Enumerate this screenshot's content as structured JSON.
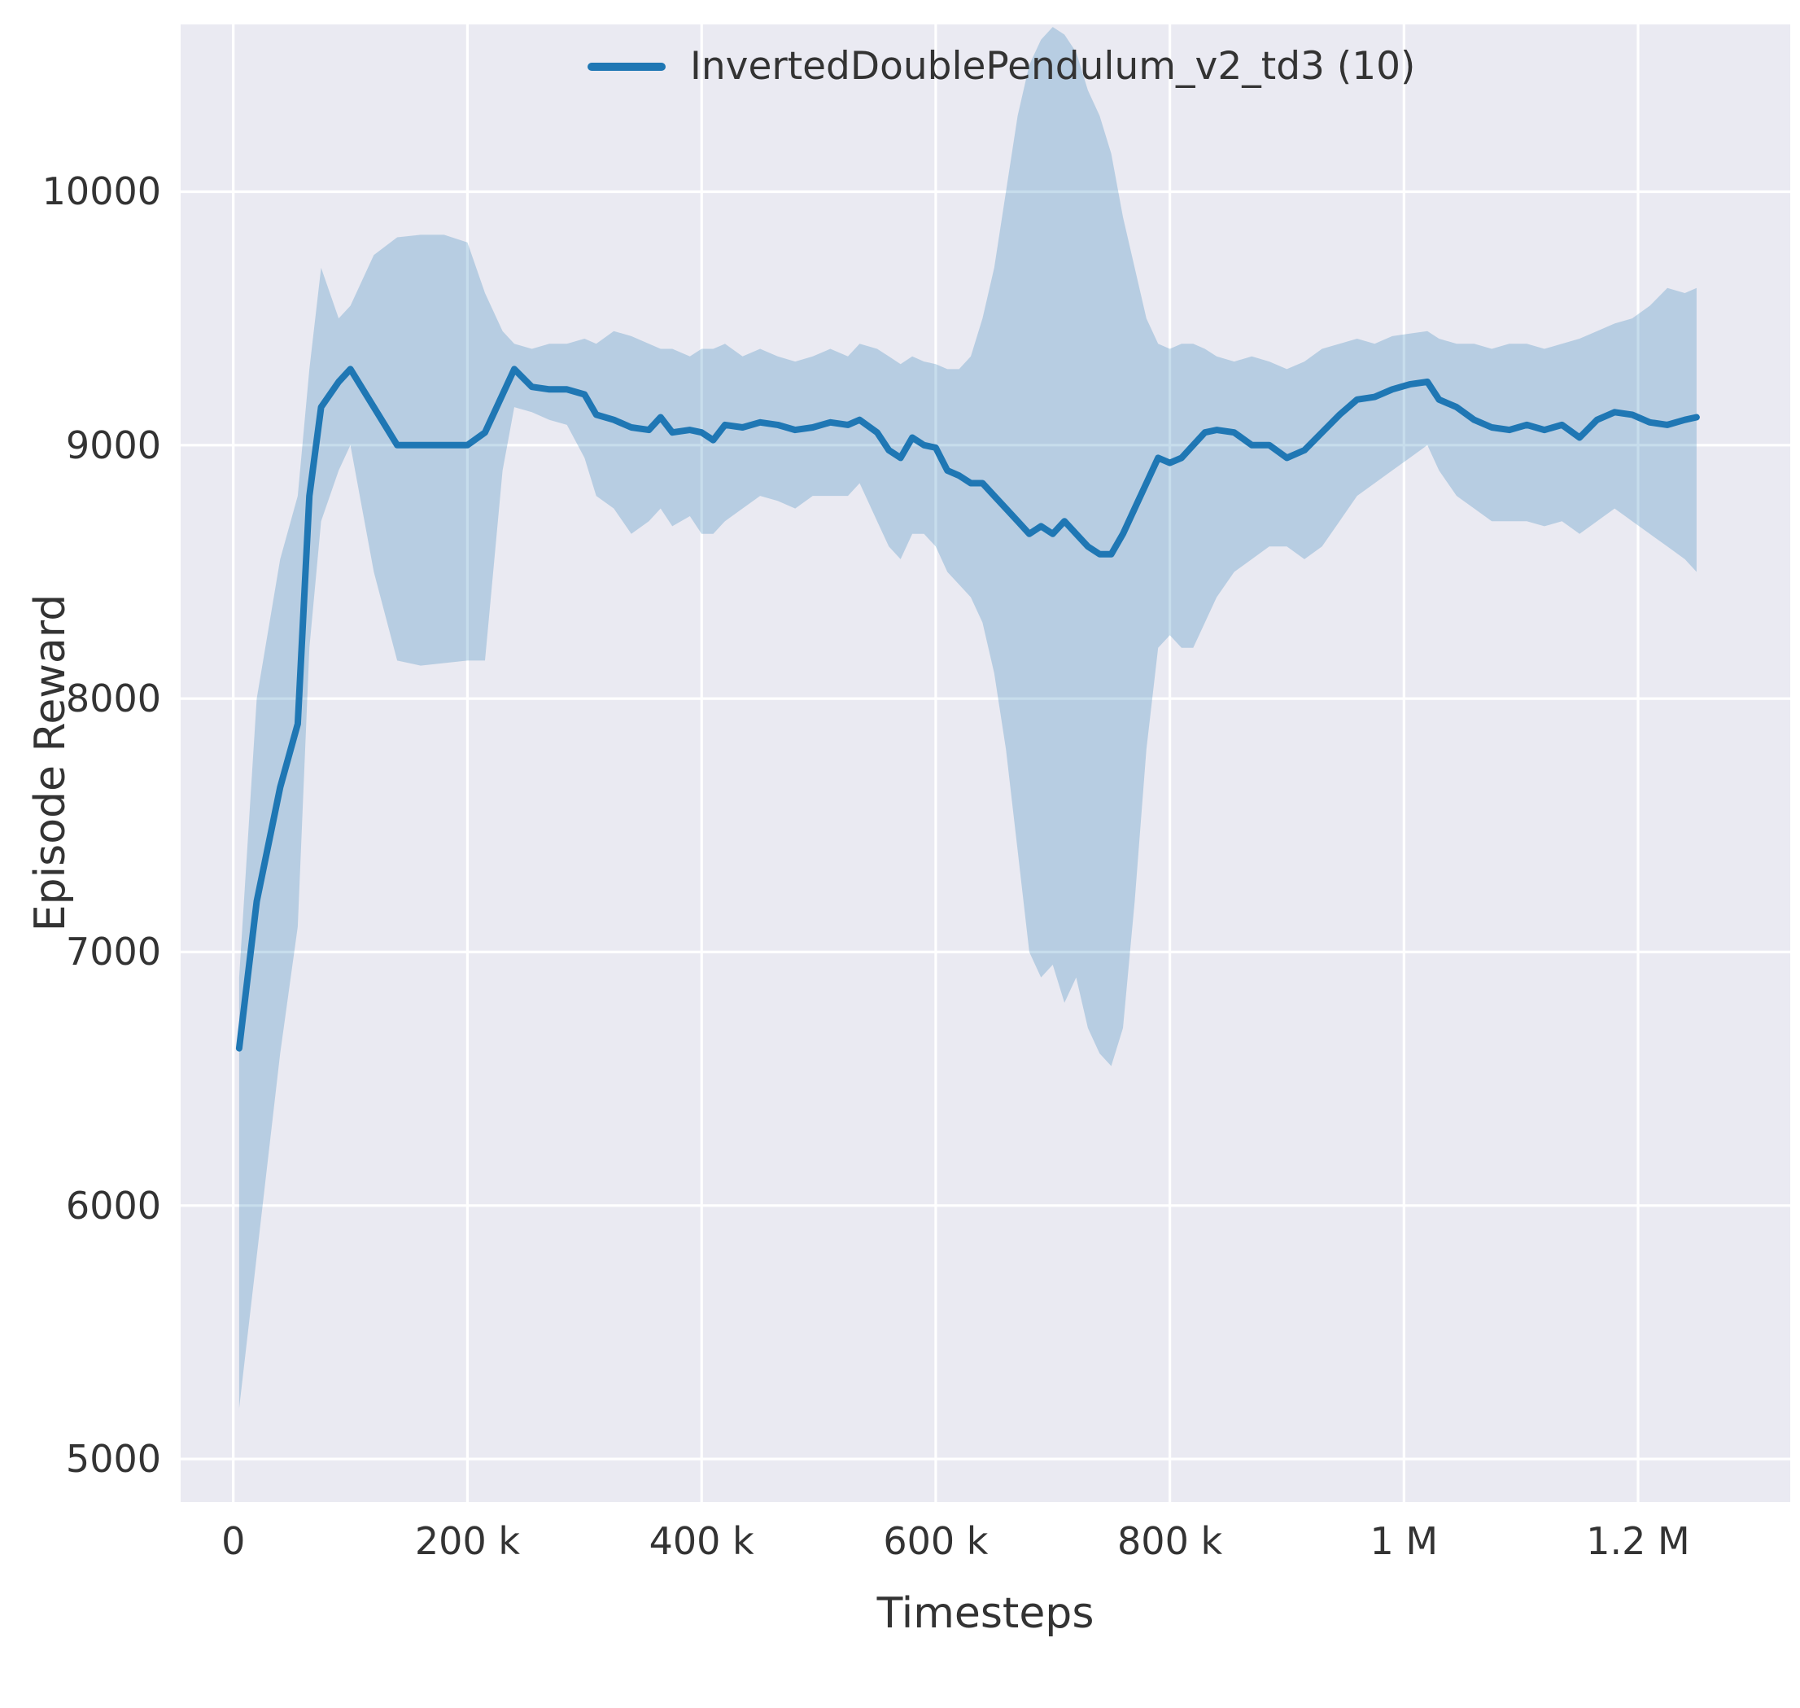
{
  "chart_data": {
    "type": "line",
    "title": "",
    "xlabel": "Timesteps",
    "ylabel": "Episode Reward",
    "legend_position": "upper center-right, frameless",
    "grid": true,
    "xlim": [
      -45000,
      1330000
    ],
    "ylim": [
      4830,
      10660
    ],
    "xticks": {
      "values": [
        0,
        200000,
        400000,
        600000,
        800000,
        1000000,
        1200000
      ],
      "labels": [
        "0",
        "200 k",
        "400 k",
        "600 k",
        "800 k",
        "1 M",
        "1.2 M"
      ]
    },
    "yticks": {
      "values": [
        5000,
        6000,
        7000,
        8000,
        9000,
        10000
      ],
      "labels": [
        "5000",
        "6000",
        "7000",
        "8000",
        "9000",
        "10000"
      ]
    },
    "colors": {
      "line": "#1f77b4",
      "band": "#1f77b4",
      "band_opacity": 0.25,
      "plot_background": "#eaeaf2",
      "grid": "#ffffff",
      "text": "#333333"
    },
    "series": [
      {
        "name": "InvertedDoublePendulum_v2_td3 (10)",
        "x": [
          5000,
          20000,
          40000,
          55000,
          65000,
          75000,
          90000,
          100000,
          120000,
          140000,
          160000,
          180000,
          200000,
          215000,
          230000,
          240000,
          255000,
          270000,
          285000,
          300000,
          310000,
          325000,
          340000,
          355000,
          365000,
          375000,
          390000,
          400000,
          410000,
          420000,
          435000,
          450000,
          465000,
          480000,
          495000,
          510000,
          525000,
          535000,
          550000,
          560000,
          570000,
          580000,
          590000,
          600000,
          610000,
          620000,
          630000,
          640000,
          650000,
          660000,
          670000,
          680000,
          690000,
          700000,
          710000,
          720000,
          730000,
          740000,
          750000,
          760000,
          770000,
          780000,
          790000,
          800000,
          810000,
          820000,
          830000,
          840000,
          855000,
          870000,
          885000,
          900000,
          915000,
          930000,
          945000,
          960000,
          975000,
          990000,
          1005000,
          1020000,
          1030000,
          1045000,
          1060000,
          1075000,
          1090000,
          1105000,
          1120000,
          1135000,
          1150000,
          1165000,
          1180000,
          1195000,
          1210000,
          1225000,
          1240000,
          1250000
        ],
        "mean": [
          6620,
          7200,
          7650,
          7900,
          8800,
          9150,
          9250,
          9300,
          9150,
          9000,
          9000,
          9000,
          9000,
          9050,
          9200,
          9300,
          9230,
          9220,
          9220,
          9200,
          9120,
          9100,
          9070,
          9060,
          9110,
          9050,
          9060,
          9050,
          9020,
          9080,
          9070,
          9090,
          9080,
          9060,
          9070,
          9090,
          9080,
          9100,
          9050,
          8980,
          8950,
          9030,
          9000,
          8990,
          8900,
          8880,
          8850,
          8850,
          8800,
          8750,
          8700,
          8650,
          8680,
          8650,
          8700,
          8650,
          8600,
          8570,
          8570,
          8650,
          8750,
          8850,
          8950,
          8930,
          8950,
          9000,
          9050,
          9060,
          9050,
          9000,
          9000,
          8950,
          8980,
          9050,
          9120,
          9180,
          9190,
          9220,
          9240,
          9250,
          9180,
          9150,
          9100,
          9070,
          9060,
          9080,
          9060,
          9080,
          9030,
          9100,
          9130,
          9120,
          9090,
          9080,
          9100,
          9110
        ],
        "lower": [
          5200,
          5800,
          6600,
          7100,
          8200,
          8700,
          8900,
          9000,
          8500,
          8150,
          8130,
          8140,
          8150,
          8150,
          8900,
          9150,
          9130,
          9100,
          9080,
          8950,
          8800,
          8750,
          8650,
          8700,
          8750,
          8680,
          8720,
          8650,
          8650,
          8700,
          8750,
          8800,
          8780,
          8750,
          8800,
          8800,
          8800,
          8850,
          8700,
          8600,
          8550,
          8650,
          8650,
          8600,
          8500,
          8450,
          8400,
          8300,
          8100,
          7800,
          7400,
          7000,
          6900,
          6950,
          6800,
          6900,
          6700,
          6600,
          6550,
          6700,
          7200,
          7800,
          8200,
          8250,
          8200,
          8200,
          8300,
          8400,
          8500,
          8550,
          8600,
          8600,
          8550,
          8600,
          8700,
          8800,
          8850,
          8900,
          8950,
          9000,
          8900,
          8800,
          8750,
          8700,
          8700,
          8700,
          8680,
          8700,
          8650,
          8700,
          8750,
          8700,
          8650,
          8600,
          8550,
          8500
        ],
        "upper": [
          6900,
          8000,
          8550,
          8800,
          9300,
          9700,
          9500,
          9550,
          9750,
          9820,
          9830,
          9830,
          9800,
          9600,
          9450,
          9400,
          9380,
          9400,
          9400,
          9420,
          9400,
          9450,
          9430,
          9400,
          9380,
          9380,
          9350,
          9380,
          9380,
          9400,
          9350,
          9380,
          9350,
          9330,
          9350,
          9380,
          9350,
          9400,
          9380,
          9350,
          9320,
          9350,
          9330,
          9320,
          9300,
          9300,
          9350,
          9500,
          9700,
          10000,
          10300,
          10500,
          10600,
          10650,
          10620,
          10550,
          10400,
          10300,
          10150,
          9900,
          9700,
          9500,
          9400,
          9380,
          9400,
          9400,
          9380,
          9350,
          9330,
          9350,
          9330,
          9300,
          9330,
          9380,
          9400,
          9420,
          9400,
          9430,
          9440,
          9450,
          9420,
          9400,
          9400,
          9380,
          9400,
          9400,
          9380,
          9400,
          9420,
          9450,
          9480,
          9500,
          9550,
          9620,
          9600,
          9620
        ]
      }
    ]
  }
}
